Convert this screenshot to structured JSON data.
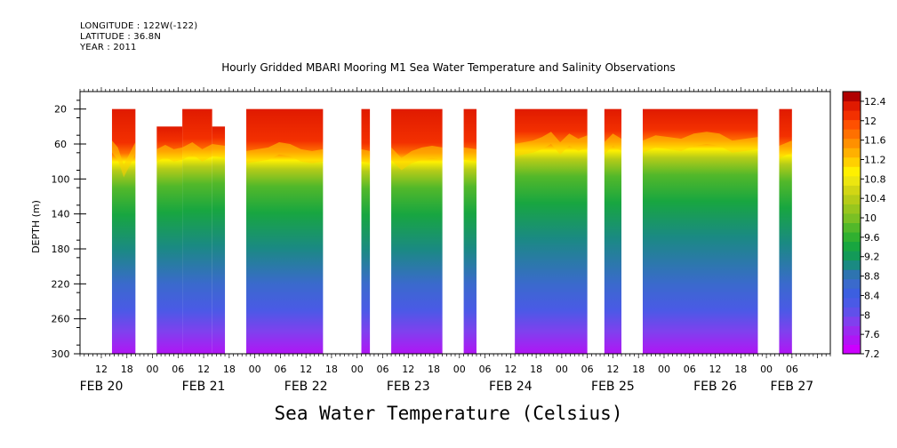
{
  "header": {
    "longitude": "LONGITUDE : 122W(-122)",
    "latitude": "LATITUDE : 36.8N",
    "year": "YEAR : 2011"
  },
  "chart_data": {
    "type": "heatmap",
    "title": "Hourly Gridded MBARI Mooring M1 Sea Water Temperature and Salinity Observations",
    "xlabel": "Sea Water Temperature (Celsius)",
    "ylabel": "DEPTH (m)",
    "x_unit": "hours since FEB 20 00:00",
    "xlim": [
      7,
      183
    ],
    "ylim": [
      0,
      300
    ],
    "y_ticks": [
      20,
      60,
      100,
      140,
      180,
      220,
      260,
      300
    ],
    "x_hour_ticks": [
      {
        "h": 12,
        "label": "12"
      },
      {
        "h": 18,
        "label": "18"
      },
      {
        "h": 24,
        "label": "00"
      },
      {
        "h": 30,
        "label": "06"
      },
      {
        "h": 36,
        "label": "12"
      },
      {
        "h": 42,
        "label": "18"
      },
      {
        "h": 48,
        "label": "00"
      },
      {
        "h": 54,
        "label": "06"
      },
      {
        "h": 60,
        "label": "12"
      },
      {
        "h": 66,
        "label": "18"
      },
      {
        "h": 72,
        "label": "00"
      },
      {
        "h": 78,
        "label": "06"
      },
      {
        "h": 84,
        "label": "12"
      },
      {
        "h": 90,
        "label": "18"
      },
      {
        "h": 96,
        "label": "00"
      },
      {
        "h": 102,
        "label": "06"
      },
      {
        "h": 108,
        "label": "12"
      },
      {
        "h": 114,
        "label": "18"
      },
      {
        "h": 120,
        "label": "00"
      },
      {
        "h": 126,
        "label": "06"
      },
      {
        "h": 132,
        "label": "12"
      },
      {
        "h": 138,
        "label": "18"
      },
      {
        "h": 144,
        "label": "00"
      },
      {
        "h": 150,
        "label": "06"
      },
      {
        "h": 156,
        "label": "12"
      },
      {
        "h": 162,
        "label": "18"
      },
      {
        "h": 168,
        "label": "00"
      },
      {
        "h": 174,
        "label": "06"
      }
    ],
    "day_labels": [
      {
        "h": 12,
        "label": "FEB 20"
      },
      {
        "h": 36,
        "label": "FEB 21"
      },
      {
        "h": 60,
        "label": "FEB 22"
      },
      {
        "h": 84,
        "label": "FEB 23"
      },
      {
        "h": 108,
        "label": "FEB 24"
      },
      {
        "h": 132,
        "label": "FEB 25"
      },
      {
        "h": 156,
        "label": "FEB 26"
      },
      {
        "h": 174,
        "label": "FEB 27"
      }
    ],
    "segments": [
      {
        "start": 14.5,
        "end": 20,
        "top": 20,
        "thermocline": [
          70,
          78,
          98,
          85,
          72
        ]
      },
      {
        "start": 25,
        "end": 31,
        "top": 40,
        "thermocline": [
          80,
          75,
          80,
          78
        ]
      },
      {
        "start": 31,
        "end": 38,
        "top": 20,
        "thermocline": [
          78,
          72,
          80,
          74
        ]
      },
      {
        "start": 38,
        "end": 41,
        "top": 40,
        "thermocline": [
          74,
          76
        ]
      },
      {
        "start": 46,
        "end": 64,
        "top": 20,
        "thermocline": [
          82,
          80,
          78,
          72,
          74,
          80,
          82,
          80
        ]
      },
      {
        "start": 73,
        "end": 75,
        "top": 20,
        "thermocline": [
          80,
          82
        ]
      },
      {
        "start": 80,
        "end": 92,
        "top": 20,
        "thermocline": [
          78,
          90,
          82,
          78,
          76,
          78
        ]
      },
      {
        "start": 97,
        "end": 100,
        "top": 20,
        "thermocline": [
          78,
          80
        ]
      },
      {
        "start": 109,
        "end": 126,
        "top": 20,
        "thermocline": [
          74,
          72,
          70,
          66,
          60,
          72,
          62,
          68,
          64
        ]
      },
      {
        "start": 130,
        "end": 134,
        "top": 20,
        "thermocline": [
          72,
          62,
          68
        ]
      },
      {
        "start": 139,
        "end": 166,
        "top": 20,
        "thermocline": [
          70,
          64,
          66,
          68,
          62,
          60,
          62,
          70,
          68,
          66
        ]
      },
      {
        "start": 171,
        "end": 174,
        "top": 20,
        "thermocline": [
          76,
          70
        ]
      }
    ],
    "colorbar": {
      "levels": [
        7.2,
        7.4,
        7.6,
        7.8,
        8,
        8.2,
        8.4,
        8.6,
        8.8,
        9,
        9.2,
        9.4,
        9.6,
        9.8,
        10,
        10.2,
        10.4,
        10.6,
        10.8,
        11,
        11.2,
        11.4,
        11.6,
        11.8,
        12,
        12.2,
        12.4,
        12.6
      ],
      "labels": [
        "12.4",
        "12",
        "11.6",
        "11.2",
        "10.8",
        "10.4",
        "10",
        "9.6",
        "9.2",
        "8.8",
        "8.4",
        "8",
        "7.6",
        "7.2"
      ],
      "label_values": [
        12.4,
        12,
        11.6,
        11.2,
        10.8,
        10.4,
        10,
        9.6,
        9.2,
        8.8,
        8.4,
        8,
        7.6,
        7.2
      ],
      "colors": [
        "#cc00ff",
        "#b015f5",
        "#9a2af0",
        "#8040ee",
        "#6050ea",
        "#4a5ae6",
        "#3c5fe0",
        "#3a6acc",
        "#2e74b0",
        "#1a8a82",
        "#139a58",
        "#18a640",
        "#30b030",
        "#52b82a",
        "#7ac024",
        "#98c61e",
        "#b6cc18",
        "#d2d614",
        "#ece610",
        "#fff000",
        "#ffd000",
        "#ffb000",
        "#ff9000",
        "#ff7000",
        "#ff5000",
        "#f33000",
        "#e01a00",
        "#b00000"
      ]
    }
  }
}
